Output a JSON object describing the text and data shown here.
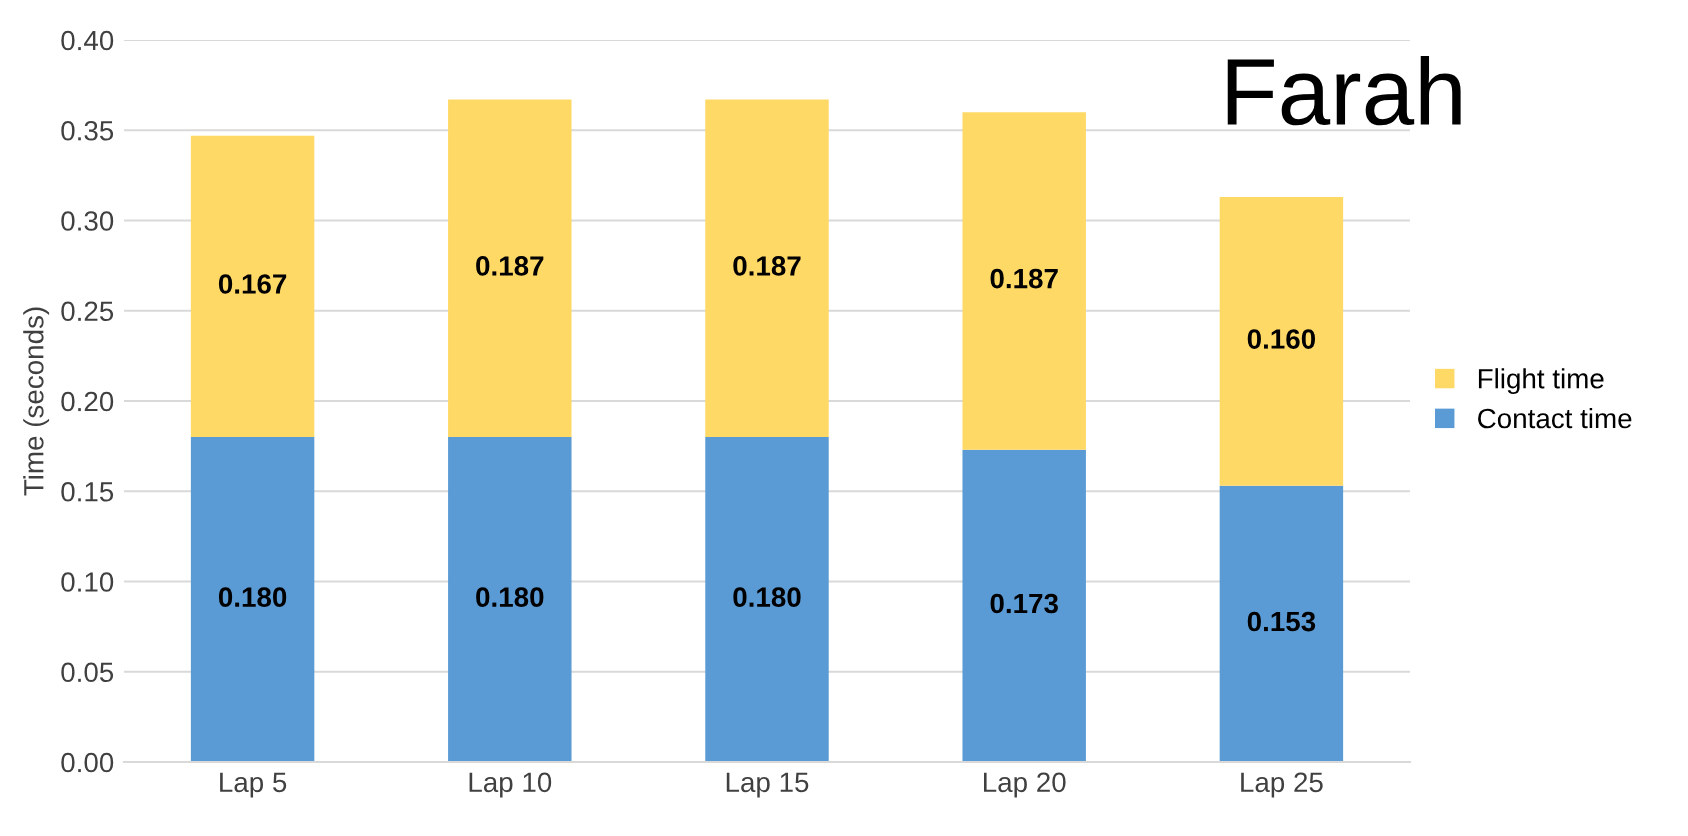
{
  "chart_data": {
    "type": "bar",
    "title": "Farah",
    "ylabel": "Time (seconds)",
    "stacked": true,
    "categories": [
      "Lap 5",
      "Lap 10",
      "Lap 15",
      "Lap 20",
      "Lap 25"
    ],
    "series": [
      {
        "name": "Contact time",
        "color": "#5b9bd5",
        "values": [
          0.18,
          0.18,
          0.18,
          0.173,
          0.153
        ],
        "value_labels": [
          "0.180",
          "0.180",
          "0.180",
          "0.173",
          "0.153"
        ]
      },
      {
        "name": "Flight time",
        "color": "#ffd966",
        "values": [
          0.167,
          0.187,
          0.187,
          0.187,
          0.16
        ],
        "value_labels": [
          "0.167",
          "0.187",
          "0.187",
          "0.187",
          "0.160"
        ]
      }
    ],
    "ylim": [
      0,
      0.4
    ],
    "yticks": [
      {
        "value": 0,
        "label": "0.00"
      },
      {
        "value": 0.05,
        "label": "0.05"
      },
      {
        "value": 0.1,
        "label": "0.10"
      },
      {
        "value": 0.15,
        "label": "0.15"
      },
      {
        "value": 0.2,
        "label": "0.20"
      },
      {
        "value": 0.25,
        "label": "0.25"
      },
      {
        "value": 0.3,
        "label": "0.30"
      },
      {
        "value": 0.35,
        "label": "0.35"
      },
      {
        "value": 0.4,
        "label": "0.40"
      }
    ],
    "grid": "y",
    "legend": "right"
  }
}
